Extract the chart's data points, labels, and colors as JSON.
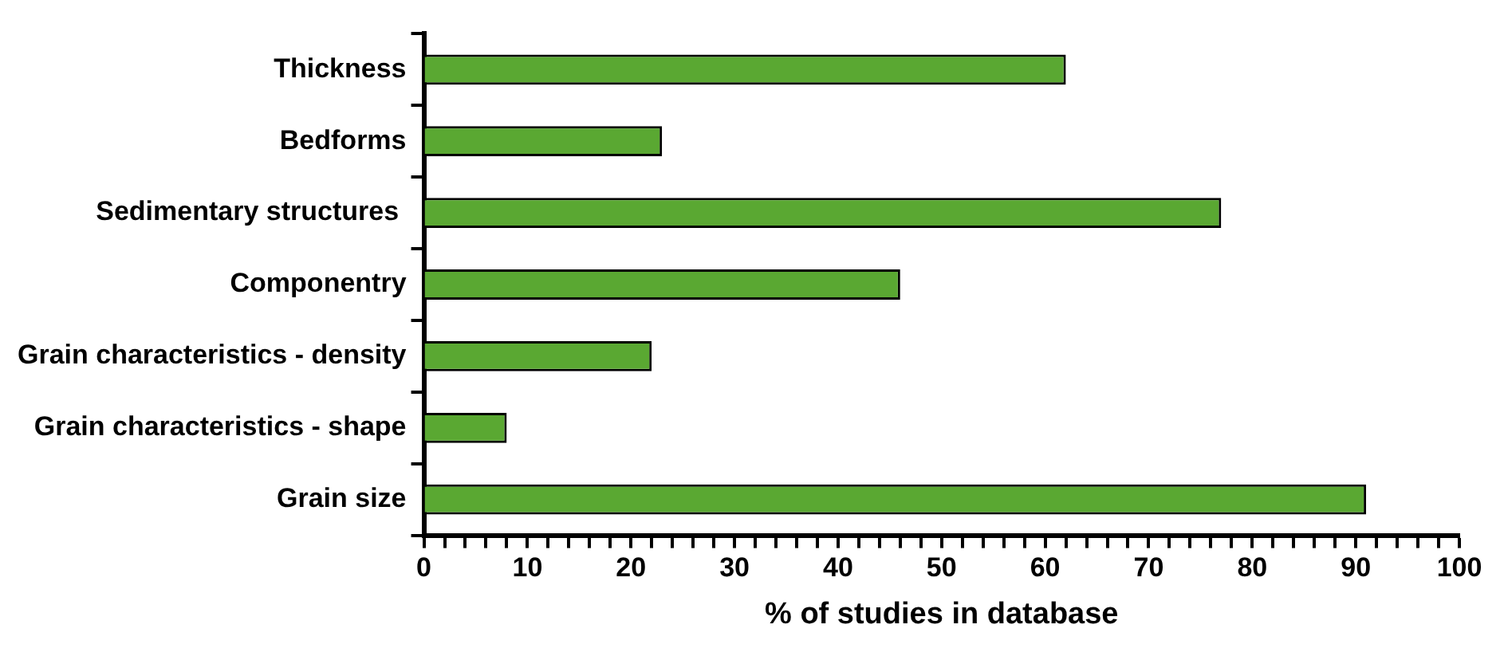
{
  "chart_data": {
    "type": "bar",
    "orientation": "horizontal",
    "xlabel": "% of studies in database",
    "categories": [
      "Thickness",
      "Bedforms",
      "Sedimentary structures ",
      "Componentry",
      "Grain characteristics - density",
      "Grain characteristics - shape",
      "Grain size"
    ],
    "values": [
      62,
      23,
      77,
      46,
      22,
      8,
      91
    ],
    "color": "#5aa832",
    "xlim": [
      0,
      100
    ],
    "xticks": [
      0,
      {
        "value": 2,
        "label": null
      },
      {
        "value": 4,
        "label": null
      },
      {
        "value": 6,
        "label": null
      },
      {
        "value": 8,
        "label": null
      },
      10,
      {
        "value": 12,
        "label": null
      },
      {
        "value": 14,
        "label": null
      },
      {
        "value": 16,
        "label": null
      },
      {
        "value": 18,
        "label": null
      },
      20,
      {
        "value": 22,
        "label": null
      },
      {
        "value": 24,
        "label": null
      },
      {
        "value": 26,
        "label": null
      },
      {
        "value": 28,
        "label": null
      },
      30,
      {
        "value": 32,
        "label": null
      },
      {
        "value": 34,
        "label": null
      },
      {
        "value": 36,
        "label": null
      },
      {
        "value": 38,
        "label": null
      },
      40,
      {
        "value": 42,
        "label": null
      },
      {
        "value": 44,
        "label": null
      },
      {
        "value": 46,
        "label": null
      },
      {
        "value": 48,
        "label": null
      },
      50,
      {
        "value": 52,
        "label": null
      },
      {
        "value": 54,
        "label": null
      },
      {
        "value": 56,
        "label": null
      },
      {
        "value": 58,
        "label": null
      },
      60,
      {
        "value": 62,
        "label": null
      },
      {
        "value": 64,
        "label": null
      },
      {
        "value": 66,
        "label": null
      },
      {
        "value": 68,
        "label": null
      },
      70,
      {
        "value": 72,
        "label": null
      },
      {
        "value": 74,
        "label": null
      },
      {
        "value": 76,
        "label": null
      },
      {
        "value": 78,
        "label": null
      },
      80,
      {
        "value": 82,
        "label": null
      },
      {
        "value": 84,
        "label": null
      },
      {
        "value": 86,
        "label": null
      },
      {
        "value": 88,
        "label": null
      },
      90,
      {
        "value": 92,
        "label": null
      },
      {
        "value": 94,
        "label": null
      },
      {
        "value": 96,
        "label": null
      },
      {
        "value": 98,
        "label": null
      },
      100
    ],
    "grid": false,
    "legend": false
  }
}
